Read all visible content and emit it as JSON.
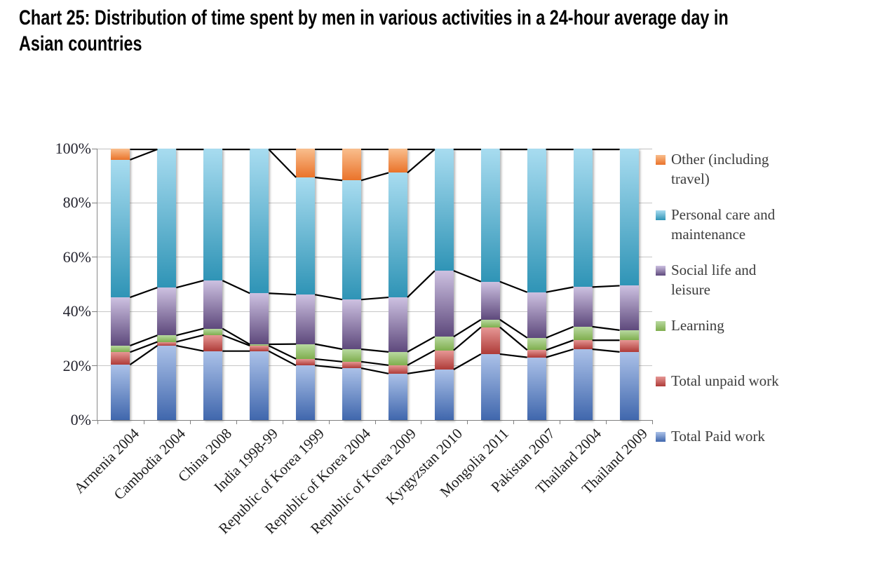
{
  "title": "Chart 25: Distribution of time spent by men in various activities in a 24-hour average day in\nAsian countries",
  "chart_data": {
    "type": "bar",
    "subtype": "100%-stacked-column-with-series-lines",
    "categories": [
      "Armenia 2004",
      "Cambodia 2004",
      "China 2008",
      "India 1998-99",
      "Republic of Korea 1999",
      "Republic of Korea 2004",
      "Republic of Korea 2009",
      "Kyrgyzstan 2010",
      "Mongolia 2011",
      "Pakistan 2007",
      "Thailand 2004",
      "Thailand 2009"
    ],
    "series": [
      {
        "key": "paid",
        "name": "Total Paid work",
        "color_top": "#ABC1E8",
        "color_bottom": "#4067AD",
        "values": [
          20.4,
          27.4,
          25.4,
          25.4,
          20.1,
          19.1,
          17.1,
          18.6,
          24.3,
          23.1,
          26.1,
          25.1
        ]
      },
      {
        "key": "unpaid",
        "name": "Total unpaid work",
        "color_top": "#E69795",
        "color_bottom": "#AE3B38",
        "values": [
          4.6,
          1.4,
          5.9,
          2.0,
          2.4,
          2.4,
          3.1,
          7.1,
          9.9,
          2.7,
          3.3,
          4.3
        ]
      },
      {
        "key": "learning",
        "name": "Learning",
        "color_top": "#B8D9A0",
        "color_bottom": "#7FAE4E",
        "values": [
          2.4,
          2.4,
          2.4,
          0.5,
          5.5,
          4.6,
          4.9,
          5.0,
          2.8,
          4.5,
          5.0,
          3.7
        ]
      },
      {
        "key": "social",
        "name": "Social life and leisure",
        "color_top": "#CDC1E1",
        "color_bottom": "#5E497C",
        "values": [
          17.8,
          17.6,
          17.7,
          18.8,
          18.2,
          18.3,
          20.1,
          24.3,
          14.0,
          16.8,
          14.6,
          16.4
        ]
      },
      {
        "key": "personal",
        "name": "Personal care and maintenance",
        "color_top": "#A8DCF0",
        "color_bottom": "#2F94B6",
        "values": [
          50.7,
          51.2,
          48.6,
          53.3,
          43.2,
          43.9,
          45.9,
          45.0,
          49.0,
          52.9,
          51.0,
          50.5
        ]
      },
      {
        "key": "other",
        "name": "Other (including travel)",
        "color_top": "#F9BE8D",
        "color_bottom": "#EA732A",
        "values": [
          4.1,
          0,
          0,
          0,
          10.6,
          11.7,
          8.9,
          0,
          0,
          0,
          0,
          0
        ]
      }
    ],
    "y_ticks": [
      {
        "value": 0,
        "label": "0%"
      },
      {
        "value": 20,
        "label": "20%"
      },
      {
        "value": 40,
        "label": "40%"
      },
      {
        "value": 60,
        "label": "60%"
      },
      {
        "value": 80,
        "label": "80%"
      },
      {
        "value": 100,
        "label": "100%"
      }
    ],
    "ylim": [
      0,
      100
    ],
    "grid": true,
    "series_lines_color": "#000000",
    "legend_position": "right"
  },
  "legend": {
    "items": [
      {
        "series_key": "other",
        "label": "Other (including\ntravel)"
      },
      {
        "series_key": "personal",
        "label": "Personal care and\nmaintenance"
      },
      {
        "series_key": "social",
        "label": "Social life and\nleisure"
      },
      {
        "series_key": "learning",
        "label": "Learning"
      },
      {
        "series_key": "unpaid",
        "label": "Total unpaid work"
      },
      {
        "series_key": "paid",
        "label": "Total Paid work"
      }
    ]
  }
}
